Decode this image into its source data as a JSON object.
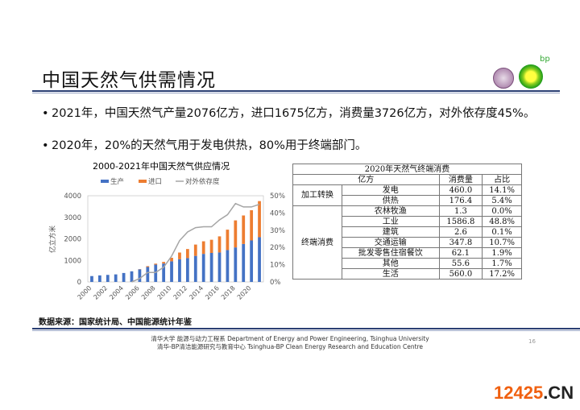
{
  "header": {
    "title": "中国天然气供需情况",
    "bp_logo_text": "bp"
  },
  "bullets": [
    "2021年，中国天然气产量2076亿方，进口1675亿方，消费量3726亿方，对外依存度45%。",
    "2020年，20%的天然气用于发电供热，80%用于终端部门。"
  ],
  "bullet_char": "•",
  "chart_data": {
    "type": "bar",
    "title": "2000-2021年中国天然气供应情况",
    "ylabel": "亿立方米",
    "y2label": "",
    "ylim": [
      0,
      4000
    ],
    "y2lim": [
      0,
      50
    ],
    "yticks": [
      "0",
      "1000",
      "2000",
      "3000",
      "4000"
    ],
    "y2ticks": [
      "0%",
      "10%",
      "20%",
      "30%",
      "40%",
      "50%"
    ],
    "xticklabels": [
      "2000",
      "2002",
      "2004",
      "2006",
      "2008",
      "2010",
      "2012",
      "2014",
      "2016",
      "2018",
      "2020"
    ],
    "legend": [
      "生产",
      "进口",
      "对外依存度"
    ],
    "legend_position": "top",
    "categories": [
      "2000",
      "2001",
      "2002",
      "2003",
      "2004",
      "2005",
      "2006",
      "2007",
      "2008",
      "2009",
      "2010",
      "2011",
      "2012",
      "2013",
      "2014",
      "2015",
      "2016",
      "2017",
      "2018",
      "2019",
      "2020",
      "2021"
    ],
    "series": [
      {
        "name": "生产",
        "type": "stacked-bar",
        "color": "#4472c4",
        "values": [
          272,
          303,
          327,
          350,
          415,
          493,
          585,
          692,
          803,
          853,
          957,
          1053,
          1106,
          1209,
          1302,
          1346,
          1369,
          1480,
          1602,
          1762,
          1925,
          2076
        ]
      },
      {
        "name": "进口",
        "type": "stacked-bar",
        "color": "#ed7d31",
        "values": [
          0,
          0,
          0,
          0,
          0,
          0,
          10,
          40,
          45,
          76,
          165,
          311,
          421,
          525,
          584,
          611,
          746,
          946,
          1254,
          1322,
          1403,
          1675
        ]
      },
      {
        "name": "对外依存度",
        "type": "line",
        "axis": "right",
        "color": "#a5a5a5",
        "values": [
          null,
          null,
          null,
          null,
          null,
          0,
          2,
          5.5,
          5.5,
          8.5,
          15,
          24,
          29,
          31.5,
          32,
          32,
          36,
          39,
          45.5,
          43.5,
          43.5,
          45
        ]
      }
    ]
  },
  "table": {
    "title": "2020年天然气终端消费",
    "headers": [
      "亿方",
      "消费量",
      "占比"
    ],
    "groups": [
      {
        "name": "加工转换",
        "rows": [
          [
            "发电",
            "460.0",
            "14.1%"
          ],
          [
            "供热",
            "176.4",
            "5.4%"
          ]
        ]
      },
      {
        "name": "终端消费",
        "rows": [
          [
            "农林牧渔",
            "1.3",
            "0.0%"
          ],
          [
            "工业",
            "1586.8",
            "48.8%"
          ],
          [
            "建筑",
            "2.6",
            "0.1%"
          ],
          [
            "交通运输",
            "347.8",
            "10.7%"
          ],
          [
            "批发零售住宿餐饮",
            "62.1",
            "1.9%"
          ],
          [
            "其他",
            "55.6",
            "1.7%"
          ],
          [
            "生活",
            "560.0",
            "17.2%"
          ]
        ]
      }
    ]
  },
  "source": "数据来源：国家统计局、中国能源统计年鉴",
  "footer": {
    "line1": "清华大学 能源与动力工程系 Department of Energy and Power Engineering, Tsinghua University",
    "line2": "清华-BP清洁能源研究与教育中心 Tsinghua-BP  Clean Energy Research and Education Centre",
    "page": "16"
  },
  "watermark": {
    "main": "12425",
    "suffix": ".CN"
  }
}
